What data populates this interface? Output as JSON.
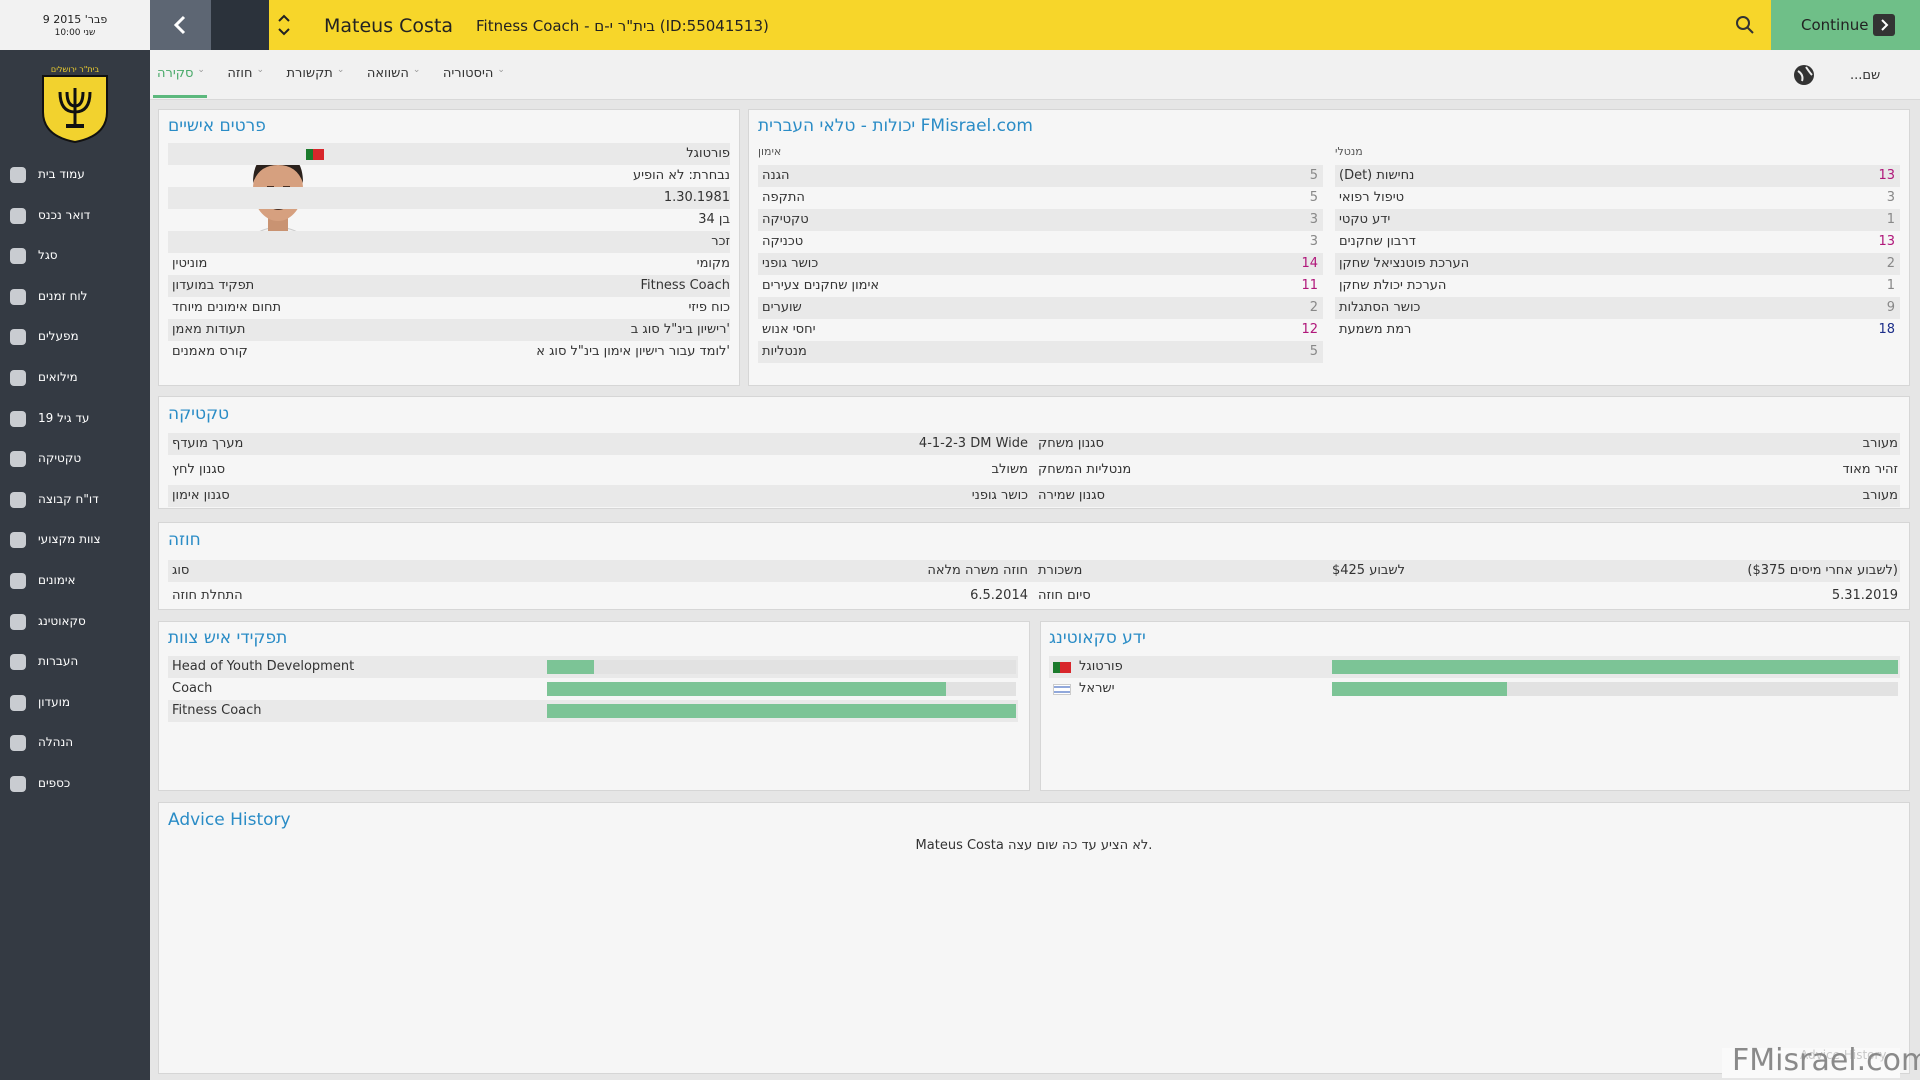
{
  "sidebar": {
    "date": "9 פבר' 2015",
    "time": "10:00 שני",
    "club": "בית\"ר ירושלים",
    "nav": [
      "עמוד בית",
      "דואר נכנס",
      "סגל",
      "לוח זמנים",
      "מפעלים",
      "מילואים",
      "עד גיל 19",
      "טקטיקה",
      "דו\"ח קבוצה",
      "צוות מקצועי",
      "אימונים",
      "סקאוטינג",
      "העברות",
      "מועדון",
      "הנהלה",
      "כספים"
    ]
  },
  "header": {
    "name": "Mateus Costa",
    "subtitle": "Fitness Coach - בית\"ר י-ם (ID:55041513)",
    "continue": "Continue"
  },
  "tabs": [
    "סקירה",
    "חוזה",
    "תקשורת",
    "השוואה",
    "היסטוריה"
  ],
  "search_label": "...שם",
  "personal": {
    "title": "פרטים אישיים",
    "info": [
      "פורטוגל",
      "נבחרת: לא הופיע",
      "1.30.1981",
      "בן 34",
      "זכר"
    ],
    "rows": [
      {
        "label": "מוניטין",
        "value": "מקומי"
      },
      {
        "label": "תפקיד במועדון",
        "value": "Fitness Coach"
      },
      {
        "label": "תחום אימונים מיוחד",
        "value": "כוח פיזי"
      },
      {
        "label": "תעודות מאמן",
        "value": "רישיון בינ\"ל סוג ב'"
      },
      {
        "label": "קורס מאמנים",
        "value": "לומד עבור רישיון אימון בינ\"ל סוג א'"
      }
    ]
  },
  "attributes": {
    "title": "יכולות - טלאי העברית FMisrael.com",
    "groups": [
      {
        "name": "אימון",
        "items": [
          {
            "label": "הגנה",
            "value": 5
          },
          {
            "label": "התקפה",
            "value": 5
          },
          {
            "label": "טקטיקה",
            "value": 3
          },
          {
            "label": "טכניקה",
            "value": 3
          },
          {
            "label": "כושר גופני",
            "value": 14
          },
          {
            "label": "אימון שחקנים צעירים",
            "value": 11
          },
          {
            "label": "שוערים",
            "value": 2
          },
          {
            "label": "יחסי אנוש",
            "value": 12
          },
          {
            "label": "מנטליות",
            "value": 5
          }
        ]
      },
      {
        "name": "מנטלי",
        "items": [
          {
            "label": "(Det) נחישות",
            "value": 13
          },
          {
            "label": "טיפול רפואי",
            "value": 3
          },
          {
            "label": "ידע טקטי",
            "value": 1
          },
          {
            "label": "דרבון שחקנים",
            "value": 13
          },
          {
            "label": "הערכת פוטנציאל שחקן",
            "value": 2
          },
          {
            "label": "הערכת יכולת שחקן",
            "value": 1
          },
          {
            "label": "כושר הסתגלות",
            "value": 9
          },
          {
            "label": "רמת משמעת",
            "value": 18
          }
        ]
      }
    ]
  },
  "tactics": {
    "title": "טקטיקה",
    "rows": [
      [
        {
          "label": "מערך מועדף",
          "value": "4-1-2-3 DM Wide"
        },
        {
          "label": "סגנון משחק",
          "value": "מעורב"
        }
      ],
      [
        {
          "label": "סגנון לחץ",
          "value": "משולב"
        },
        {
          "label": "מנטליות המשחק",
          "value": "זהיר מאוד"
        }
      ],
      [
        {
          "label": "סגנון אימון",
          "value": "כושר גופני"
        },
        {
          "label": "סגנון שמירה",
          "value": "מעורב"
        }
      ]
    ]
  },
  "contract": {
    "title": "חוזה",
    "rows": [
      [
        {
          "label": "סוג",
          "value": "חוזה משרה מלאה"
        },
        {
          "label": "משכורת",
          "value": "$425 לשבוע",
          "note": "($375 לשבוע אחרי מיסים)"
        }
      ],
      [
        {
          "label": "התחלת חוזה",
          "value": "6.5.2014"
        },
        {
          "label": "סיום חוזה",
          "value": "5.31.2019"
        }
      ]
    ]
  },
  "staff_roles": {
    "title": "תפקידי איש צוות",
    "type": "bar",
    "categories": [
      "Head of Youth Development",
      "Coach",
      "Fitness Coach"
    ],
    "values": [
      10,
      85,
      100
    ],
    "xlim": [
      0,
      100
    ],
    "color": "#7cc496",
    "track": "#e2e2e2"
  },
  "scouting": {
    "title": "ידע סקאוטינג",
    "type": "bar",
    "categories": [
      "פורטוגל",
      "ישראל"
    ],
    "values": [
      100,
      31
    ],
    "xlim": [
      0,
      100
    ],
    "color": "#7cc496",
    "track": "#e2e2e2"
  },
  "advice": {
    "title": "Advice History",
    "text": "Mateus Costa לא הציע עד כה שום עצה.",
    "link": "Advice History"
  },
  "watermark": "FMisrael.com"
}
